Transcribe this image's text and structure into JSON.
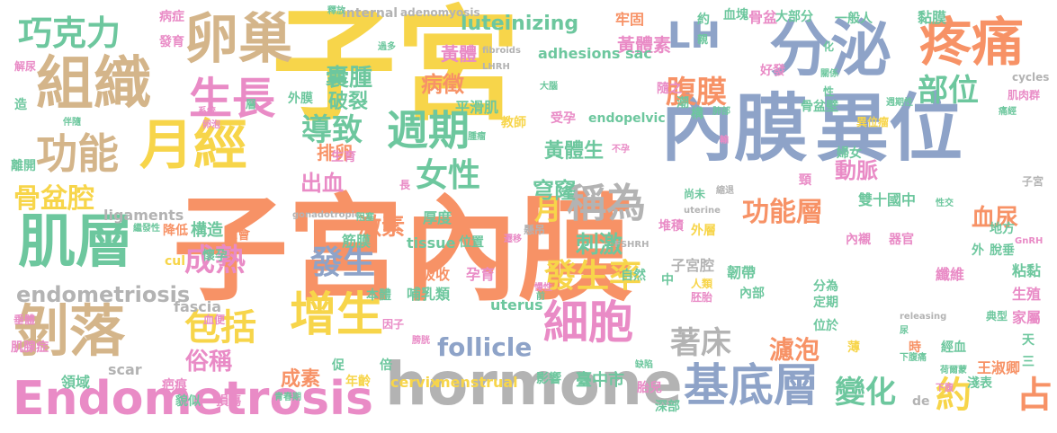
{
  "colors": {
    "yellow": "#f7d54a",
    "orange": "#f79266",
    "blue": "#8ea3c8",
    "tan": "#d4b58a",
    "green": "#6dc79e",
    "pink": "#e98bc6",
    "gray": "#b3b3b3",
    "lime": "#b8d65a"
  },
  "words": [
    {
      "text": "子宮內膜",
      "color": "orange"
    },
    {
      "text": "子宮",
      "color": "yellow"
    },
    {
      "text": "內膜",
      "color": "blue"
    },
    {
      "text": "異位",
      "color": "blue"
    },
    {
      "text": "hormone",
      "color": "gray"
    },
    {
      "text": "Endometrosis",
      "color": "pink"
    },
    {
      "text": "組織",
      "color": "tan"
    },
    {
      "text": "卵巢",
      "color": "tan"
    },
    {
      "text": "月經",
      "color": "yellow"
    },
    {
      "text": "分泌",
      "color": "blue"
    },
    {
      "text": "疼痛",
      "color": "orange"
    },
    {
      "text": "肌層",
      "color": "green"
    },
    {
      "text": "剝落",
      "color": "tan"
    },
    {
      "text": "巧克力",
      "color": "green"
    },
    {
      "text": "功能",
      "color": "tan"
    },
    {
      "text": "基底層",
      "color": "blue"
    },
    {
      "text": "週期",
      "color": "green"
    },
    {
      "text": "增生",
      "color": "yellow"
    },
    {
      "text": "細胞",
      "color": "pink"
    },
    {
      "text": "生長",
      "color": "pink"
    },
    {
      "text": "稱為",
      "color": "gray"
    },
    {
      "text": "LH",
      "color": "blue"
    },
    {
      "text": "女性",
      "color": "green"
    },
    {
      "text": "導致",
      "color": "green"
    },
    {
      "text": "骨盆腔",
      "color": "yellow"
    },
    {
      "text": "腹膜",
      "color": "orange"
    },
    {
      "text": "部位",
      "color": "green"
    },
    {
      "text": "包括",
      "color": "yellow"
    },
    {
      "text": "發生率",
      "color": "yellow"
    },
    {
      "text": "發生",
      "color": "blue"
    },
    {
      "text": "成熟",
      "color": "pink"
    },
    {
      "text": "功能層",
      "color": "orange"
    },
    {
      "text": "變化",
      "color": "green"
    },
    {
      "text": "約",
      "color": "yellow"
    },
    {
      "text": "占",
      "color": "orange"
    },
    {
      "text": "著床",
      "color": "gray"
    },
    {
      "text": "endometriosis",
      "color": "gray"
    },
    {
      "text": "follicle",
      "color": "blue"
    },
    {
      "text": "囊腫",
      "color": "green"
    },
    {
      "text": "月",
      "color": "yellow"
    },
    {
      "text": "刺激",
      "color": "green"
    },
    {
      "text": "激素",
      "color": "orange"
    },
    {
      "text": "出血",
      "color": "pink"
    },
    {
      "text": "luteinizing",
      "color": "green"
    },
    {
      "text": "黃體素",
      "color": "pink"
    },
    {
      "text": "黃體",
      "color": "pink"
    },
    {
      "text": "黃體生",
      "color": "green"
    },
    {
      "text": "病徵",
      "color": "orange"
    },
    {
      "text": "破裂",
      "color": "green"
    },
    {
      "text": "排卵",
      "color": "orange"
    },
    {
      "text": "俗稱",
      "color": "pink"
    },
    {
      "text": "成素",
      "color": "orange"
    },
    {
      "text": "濾泡",
      "color": "orange"
    },
    {
      "text": "血尿",
      "color": "orange"
    },
    {
      "text": "adhesions sac",
      "color": "green"
    },
    {
      "text": "穹窿",
      "color": "green"
    },
    {
      "text": "動脈",
      "color": "pink"
    },
    {
      "text": "雙十國中",
      "color": "green"
    },
    {
      "text": "構造",
      "color": "green"
    },
    {
      "text": "adenomyosis",
      "color": "gray"
    },
    {
      "text": "internal",
      "color": "gray"
    },
    {
      "text": "平滑肌",
      "color": "green"
    },
    {
      "text": "受孕",
      "color": "pink"
    },
    {
      "text": "endopelvic",
      "color": "green"
    },
    {
      "text": "ligaments",
      "color": "gray"
    },
    {
      "text": "tissue",
      "color": "green"
    },
    {
      "text": "uterus",
      "color": "green"
    },
    {
      "text": "cervix",
      "color": "yellow"
    },
    {
      "text": "menstrual",
      "color": "yellow"
    },
    {
      "text": "fascia",
      "color": "gray"
    },
    {
      "text": "scar",
      "color": "gray"
    },
    {
      "text": "王淑卿",
      "color": "orange"
    },
    {
      "text": "臺中市",
      "color": "green"
    },
    {
      "text": "子宮腔",
      "color": "gray"
    },
    {
      "text": "韌帶",
      "color": "green"
    },
    {
      "text": "纖維",
      "color": "pink"
    },
    {
      "text": "粘黏",
      "color": "green"
    },
    {
      "text": "生殖",
      "color": "pink"
    },
    {
      "text": "家屬",
      "color": "pink"
    },
    {
      "text": "筋膜",
      "color": "green"
    },
    {
      "text": "厚度",
      "color": "green"
    },
    {
      "text": "吸收",
      "color": "orange"
    },
    {
      "text": "孕育",
      "color": "pink"
    },
    {
      "text": "哺乳類",
      "color": "green"
    },
    {
      "text": "疤痕",
      "color": "pink"
    },
    {
      "text": "領域",
      "color": "green"
    },
    {
      "text": "年齡",
      "color": "yellow"
    },
    {
      "text": "牢固",
      "color": "orange"
    },
    {
      "text": "骨盆",
      "color": "pink"
    },
    {
      "text": "大部分",
      "color": "green"
    },
    {
      "text": "一般人",
      "color": "green"
    },
    {
      "text": "黏膜",
      "color": "green"
    },
    {
      "text": "病症",
      "color": "pink"
    },
    {
      "text": "發育",
      "color": "pink"
    },
    {
      "text": "外膜",
      "color": "green"
    },
    {
      "text": "教師",
      "color": "yellow"
    },
    {
      "text": "離開",
      "color": "green"
    },
    {
      "text": "降低",
      "color": "orange"
    },
    {
      "text": "懷孕",
      "color": "green"
    },
    {
      "text": "機會",
      "color": "orange"
    },
    {
      "text": "堆積",
      "color": "pink"
    },
    {
      "text": "外層",
      "color": "yellow"
    },
    {
      "text": "定期",
      "color": "green"
    },
    {
      "text": "位於",
      "color": "green"
    },
    {
      "text": "時",
      "color": "orange"
    },
    {
      "text": "薄",
      "color": "yellow"
    },
    {
      "text": "經血",
      "color": "green"
    },
    {
      "text": "淺表",
      "color": "green"
    },
    {
      "text": "深部",
      "color": "green"
    },
    {
      "text": "胎兒",
      "color": "pink"
    },
    {
      "text": "影響",
      "color": "green"
    },
    {
      "text": "本體",
      "color": "green"
    },
    {
      "text": "促",
      "color": "green"
    },
    {
      "text": "倍",
      "color": "green"
    },
    {
      "text": "損傷",
      "color": "pink"
    },
    {
      "text": "貌似",
      "color": "green"
    },
    {
      "text": "位置",
      "color": "green"
    },
    {
      "text": "中",
      "color": "green"
    },
    {
      "text": "人類",
      "color": "yellow"
    },
    {
      "text": "胚胎",
      "color": "pink"
    },
    {
      "text": "內部",
      "color": "green"
    },
    {
      "text": "分為",
      "color": "green"
    },
    {
      "text": "自然",
      "color": "green"
    },
    {
      "text": "器官",
      "color": "pink"
    },
    {
      "text": "內襯",
      "color": "pink"
    },
    {
      "text": "地方",
      "color": "green"
    },
    {
      "text": "脫垂",
      "color": "green"
    },
    {
      "text": "外",
      "color": "green"
    },
    {
      "text": "尚未",
      "color": "green"
    },
    {
      "text": "血塊",
      "color": "green"
    },
    {
      "text": "約",
      "color": "green"
    },
    {
      "text": "隨之",
      "color": "pink"
    },
    {
      "text": "潮",
      "color": "green"
    },
    {
      "text": "構",
      "color": "green"
    },
    {
      "text": "肌肉群",
      "color": "pink"
    },
    {
      "text": "cycles",
      "color": "gray"
    },
    {
      "text": "子宮",
      "color": "gray"
    },
    {
      "text": "異位瘤",
      "color": "yellow"
    },
    {
      "text": "骨盆壁",
      "color": "green"
    },
    {
      "text": "婦女",
      "color": "green"
    },
    {
      "text": "頸",
      "color": "pink"
    },
    {
      "text": "解尿",
      "color": "pink"
    },
    {
      "text": "造",
      "color": "green"
    },
    {
      "text": "層",
      "color": "green"
    },
    {
      "text": "生育",
      "color": "pink"
    },
    {
      "text": "懸吊",
      "color": "gray"
    },
    {
      "text": "長",
      "color": "pink"
    },
    {
      "text": "cul",
      "color": "yellow"
    },
    {
      "text": "de",
      "color": "gray"
    },
    {
      "text": "三",
      "color": "green"
    },
    {
      "text": "天",
      "color": "green"
    },
    {
      "text": "因子",
      "color": "pink"
    },
    {
      "text": "典型",
      "color": "green"
    },
    {
      "text": "垂體",
      "color": "pink"
    },
    {
      "text": "肌腺症",
      "color": "pink"
    },
    {
      "text": "血便",
      "color": "pink"
    },
    {
      "text": "大腦",
      "color": "green"
    },
    {
      "text": "釋放",
      "color": "green"
    },
    {
      "text": "化",
      "color": "green"
    },
    {
      "text": "好發",
      "color": "pink"
    },
    {
      "text": "關係",
      "color": "green"
    },
    {
      "text": "性",
      "color": "green"
    },
    {
      "text": "過多",
      "color": "green"
    },
    {
      "text": "腫瘤",
      "color": "green"
    },
    {
      "text": "親",
      "color": "green"
    },
    {
      "text": "不孕",
      "color": "pink"
    },
    {
      "text": "uterine",
      "color": "gray"
    },
    {
      "text": "releasing",
      "color": "gray"
    },
    {
      "text": "fibroids",
      "color": "gray"
    },
    {
      "text": "LHRH",
      "color": "gray"
    },
    {
      "text": "FSHRH",
      "color": "gray"
    },
    {
      "text": "GnRH",
      "color": "pink"
    },
    {
      "text": "gonadotropic",
      "color": "gray"
    },
    {
      "text": "性交",
      "color": "green"
    },
    {
      "text": "下腹",
      "color": "pink"
    },
    {
      "text": "荷爾蒙",
      "color": "green"
    },
    {
      "text": "青春期",
      "color": "green"
    },
    {
      "text": "膀胱",
      "color": "pink"
    },
    {
      "text": "繼發性",
      "color": "green"
    },
    {
      "text": "卵泡",
      "color": "pink"
    },
    {
      "text": "伴隨",
      "color": "green"
    },
    {
      "text": "系統",
      "color": "pink"
    },
    {
      "text": "遷移",
      "color": "pink"
    },
    {
      "text": "阻塞",
      "color": "green"
    },
    {
      "text": "肺部",
      "color": "green"
    },
    {
      "text": "週期性",
      "color": "green"
    },
    {
      "text": "輸",
      "color": "pink"
    },
    {
      "text": "縮退",
      "color": "gray"
    },
    {
      "text": "痛經",
      "color": "green"
    },
    {
      "text": "尿",
      "color": "green"
    },
    {
      "text": "下腹痛",
      "color": "green"
    },
    {
      "text": "慢性",
      "color": "pink"
    },
    {
      "text": "前",
      "color": "green"
    },
    {
      "text": "缺陷",
      "color": "green"
    }
  ]
}
